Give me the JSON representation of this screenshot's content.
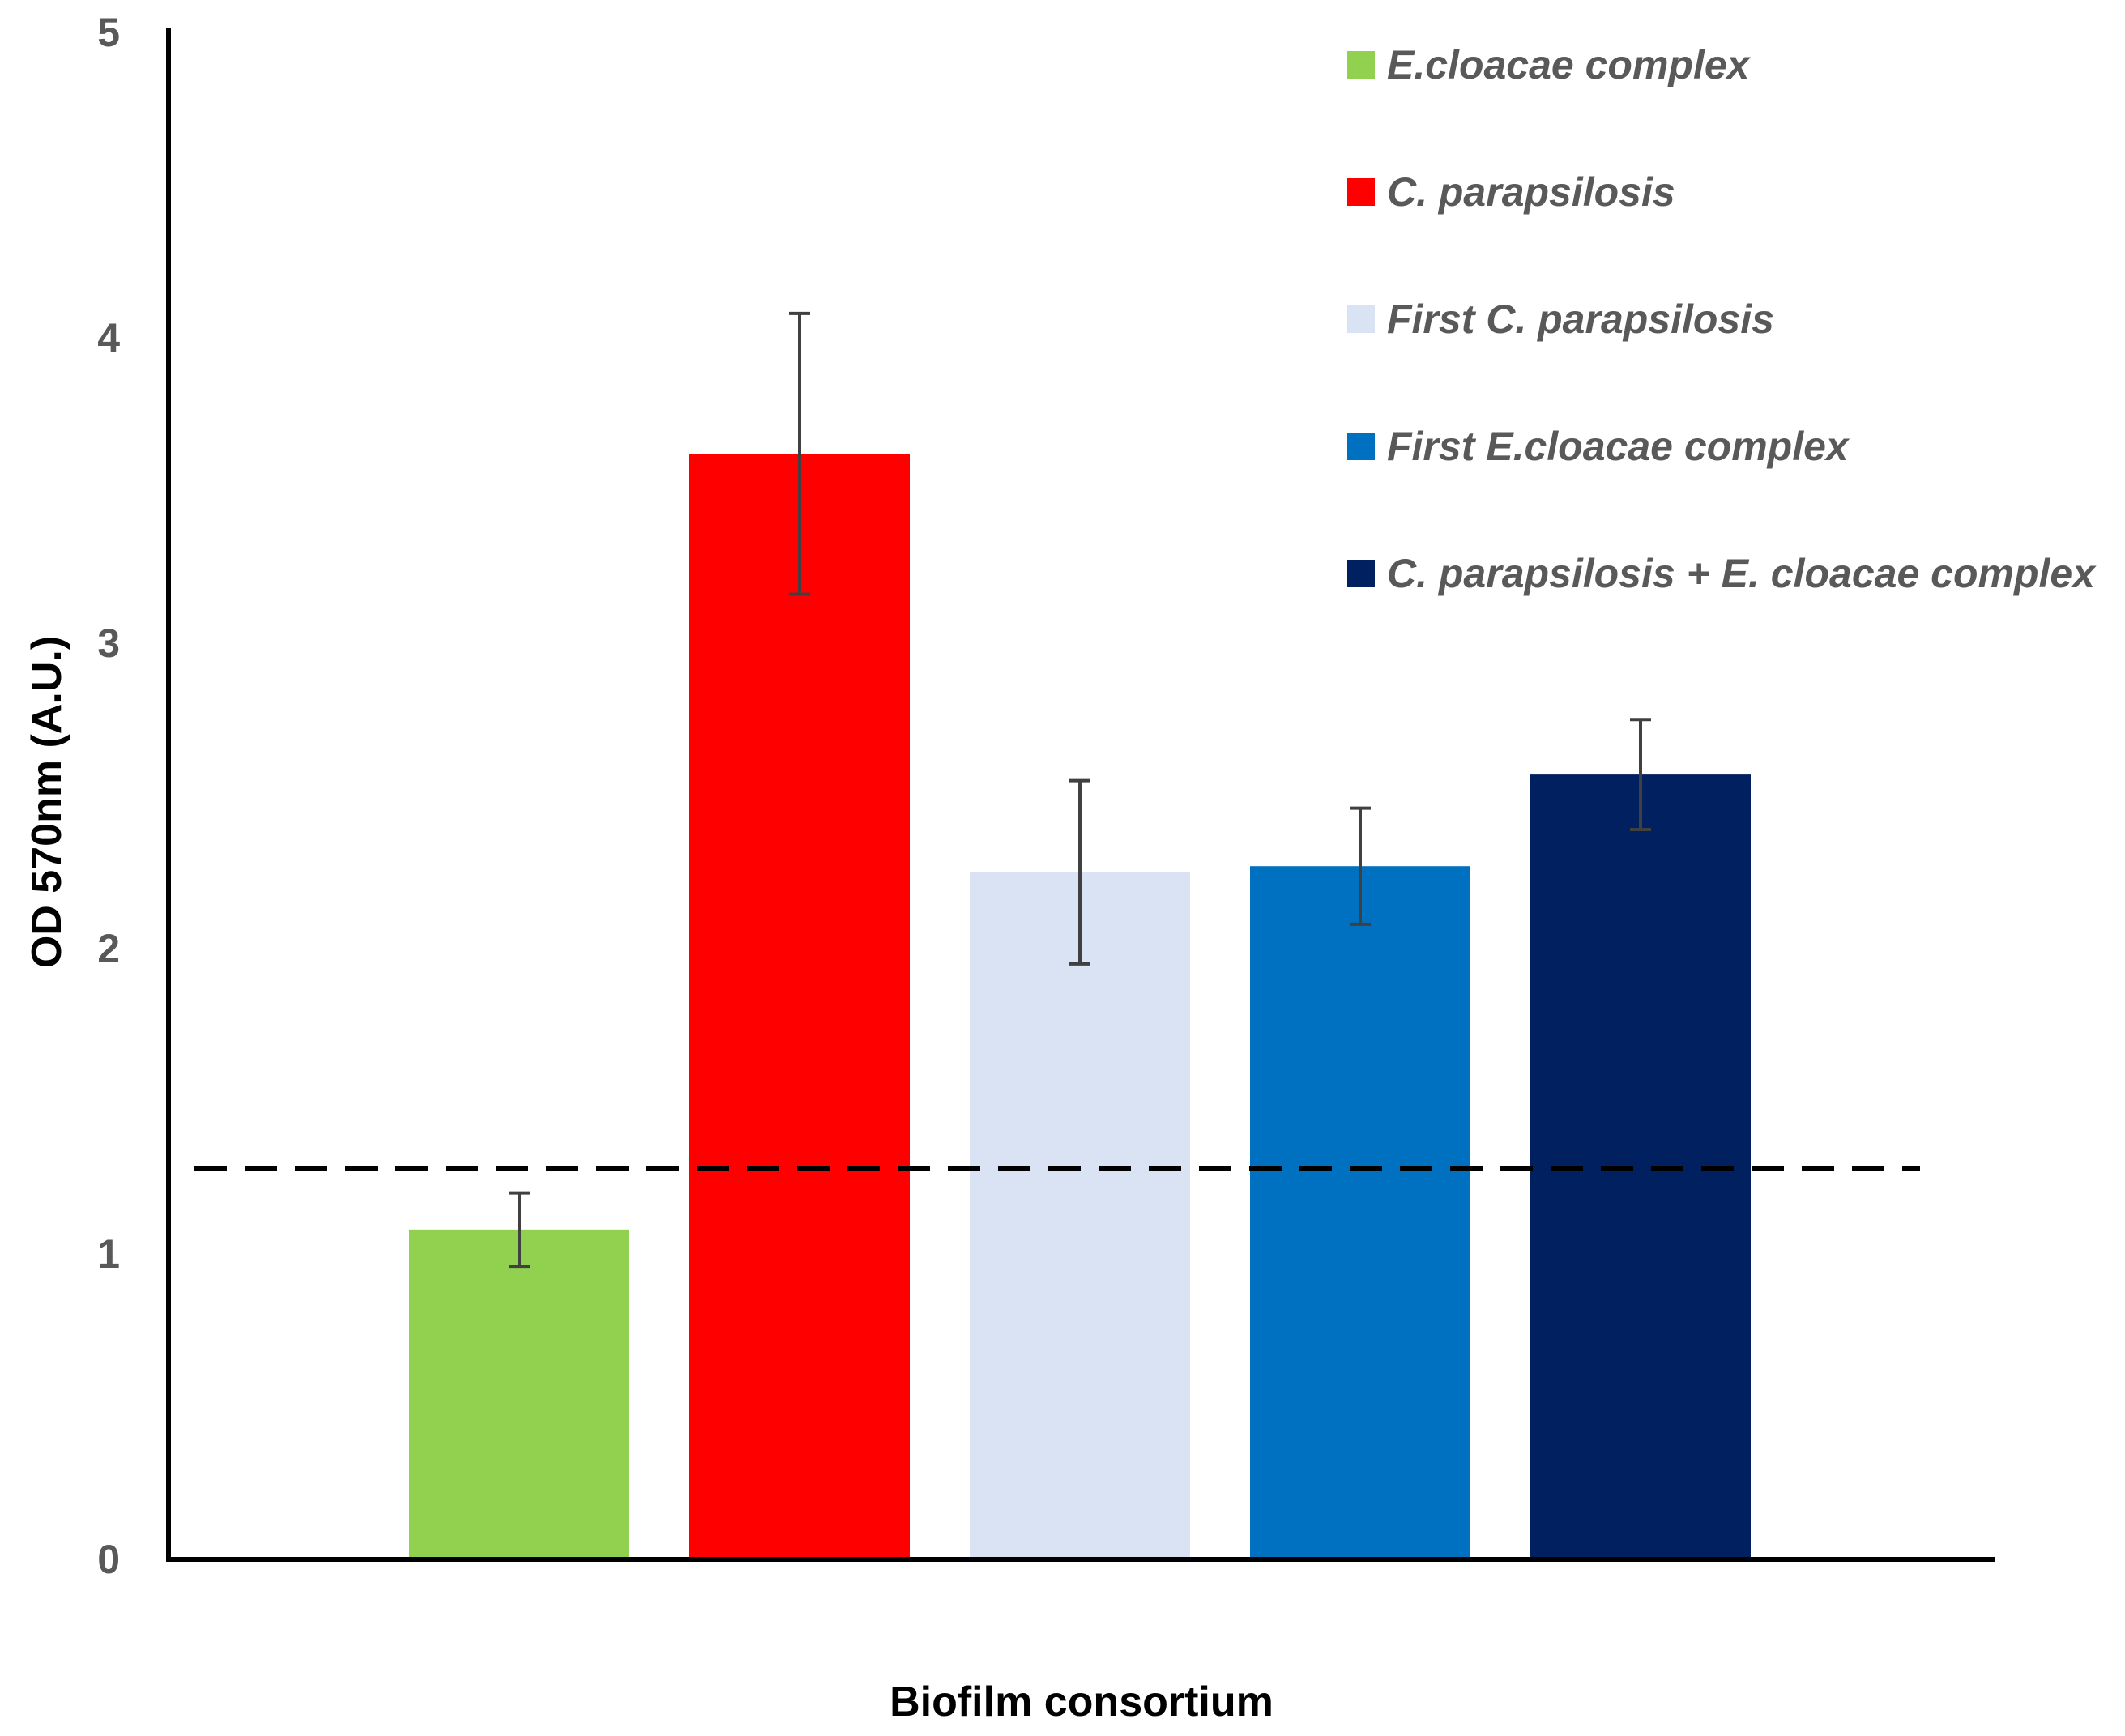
{
  "chart_data": {
    "type": "bar",
    "title": "",
    "xlabel": "Biofilm consortium",
    "ylabel": "OD 570nm (A.U.)",
    "ylim": [
      0,
      5
    ],
    "yticks": [
      "0",
      "1",
      "2",
      "3",
      "4",
      "5"
    ],
    "grid": false,
    "legend_position": "top-right",
    "categories": [
      "E.cloacae complex",
      "C. parapsilosis",
      "First C. parapsilosis",
      "First E.cloacae complex",
      "C. parapsilosis + E. cloacae complex"
    ],
    "values": [
      1.08,
      3.62,
      2.25,
      2.27,
      2.57
    ],
    "errors": [
      0.12,
      0.46,
      0.3,
      0.19,
      0.18
    ],
    "colors": [
      "#92d050",
      "#ff0000",
      "#dae3f3",
      "#0070c0",
      "#002060"
    ],
    "threshold": 1.28,
    "threshold_style": "dashed",
    "threshold_color": "#000000",
    "error_bar_color": "#404040",
    "axis_color": "#000000"
  }
}
